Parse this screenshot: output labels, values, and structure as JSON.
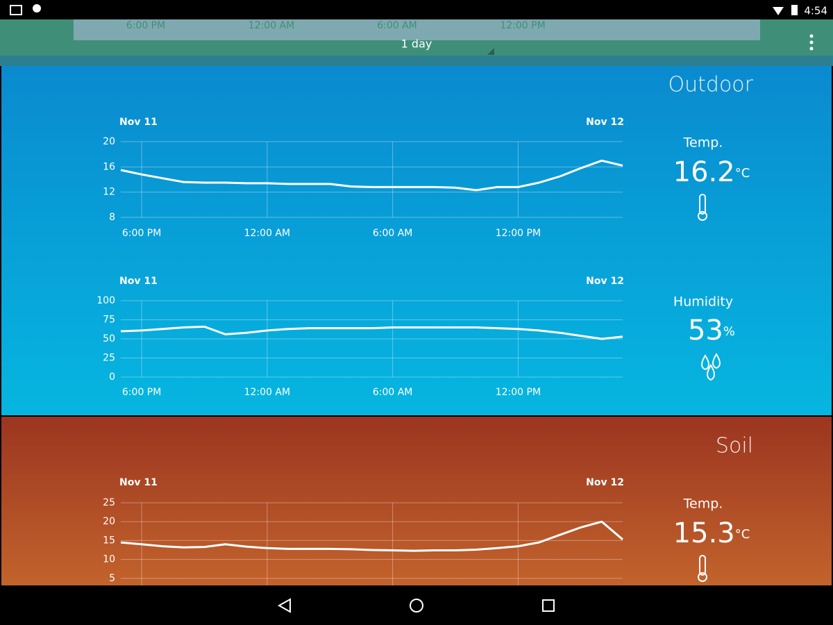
{
  "status_bar": {
    "time": "4:54"
  },
  "range_bar": {
    "ticks": [
      "6:00 PM",
      "12:00 AM",
      "6:00 AM",
      "12:00 PM"
    ],
    "label": "1 day"
  },
  "sections": [
    {
      "title": "Outdoor",
      "panels": [
        {
          "chart": {
            "type": "line",
            "start_label": "Nov 11",
            "end_label": "Nov 12",
            "categories": [
              null,
              "6:00 PM",
              null,
              null,
              null,
              null,
              null,
              "12:00 AM",
              null,
              null,
              null,
              null,
              null,
              "6:00 AM",
              null,
              null,
              null,
              null,
              null,
              "12:00 PM",
              null,
              null,
              null,
              null,
              null
            ],
            "values": [
              15.5,
              14.8,
              14.2,
              13.6,
              13.5,
              13.5,
              13.4,
              13.4,
              13.3,
              13.3,
              13.3,
              12.9,
              12.8,
              12.8,
              12.8,
              12.8,
              12.7,
              12.3,
              12.8,
              12.8,
              13.5,
              14.5,
              15.8,
              17.0,
              16.2
            ],
            "color": "#ffffff",
            "ylim": [
              8,
              20
            ],
            "yticks": [
              8,
              12,
              16,
              20
            ],
            "grid": true
          },
          "reading": {
            "label": "Temp.",
            "value": 16.2,
            "unit": "°C"
          }
        },
        {
          "chart": {
            "type": "line",
            "start_label": "Nov 11",
            "end_label": "Nov 12",
            "categories": [
              null,
              "6:00 PM",
              null,
              null,
              null,
              null,
              null,
              "12:00 AM",
              null,
              null,
              null,
              null,
              null,
              "6:00 AM",
              null,
              null,
              null,
              null,
              null,
              "12:00 PM",
              null,
              null,
              null,
              null,
              null
            ],
            "values": [
              60,
              61,
              63,
              65,
              66,
              56,
              58,
              61,
              63,
              64,
              64,
              64,
              64,
              65,
              65,
              65,
              65,
              65,
              64,
              63,
              61,
              58,
              54,
              50,
              53
            ],
            "color": "#ffffff",
            "ylim": [
              0,
              100
            ],
            "yticks": [
              0,
              25,
              50,
              75,
              100
            ],
            "grid": true
          },
          "reading": {
            "label": "Humidity",
            "value": 53,
            "unit": "%"
          }
        }
      ]
    },
    {
      "title": "Soil",
      "panels": [
        {
          "chart": {
            "type": "line",
            "start_label": "Nov 11",
            "end_label": "Nov 12",
            "categories": [
              null,
              null,
              null,
              null,
              null,
              null,
              null,
              null,
              null,
              null,
              null,
              null,
              null,
              null,
              null,
              null,
              null,
              null,
              null,
              null,
              null,
              null,
              null,
              null,
              null
            ],
            "values": [
              14.5,
              14.0,
              13.5,
              13.2,
              13.3,
              14.0,
              13.4,
              13.0,
              12.8,
              12.8,
              12.8,
              12.7,
              12.5,
              12.4,
              12.3,
              12.4,
              12.4,
              12.6,
              13.0,
              13.5,
              14.5,
              16.5,
              18.5,
              20.0,
              15.3
            ],
            "color": "#ffffff",
            "ylim": [
              0,
              25
            ],
            "yticks": [
              5,
              10,
              15,
              20,
              25
            ],
            "grid": true
          },
          "reading": {
            "label": "Temp.",
            "value": 15.3,
            "unit": "°C"
          }
        }
      ]
    }
  ]
}
